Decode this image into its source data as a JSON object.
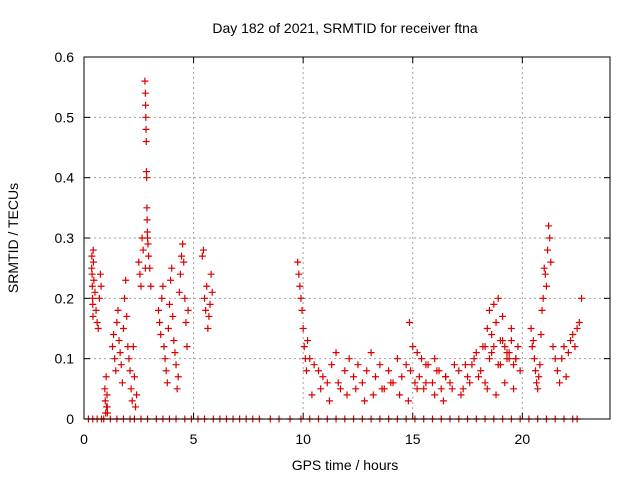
{
  "chart_data": {
    "type": "scatter",
    "title": "Day 182 of 2021, SRMTID for receiver ftna",
    "xlabel": "GPS time / hours",
    "ylabel": "SRMTID / TECUs",
    "xlim": [
      0,
      24
    ],
    "ylim": [
      0,
      0.6
    ],
    "xticks": [
      0,
      5,
      10,
      15,
      20
    ],
    "xtick_labels": [
      "0",
      "5",
      "10",
      "15",
      "20"
    ],
    "yticks": [
      0,
      0.1,
      0.2,
      0.3,
      0.4,
      0.5,
      0.6
    ],
    "ytick_labels": [
      "0",
      "0.1",
      "0.2",
      "0.3",
      "0.4",
      "0.5",
      "0.6"
    ],
    "grid": true,
    "marker": "+",
    "series_color": "#dd0000",
    "series": [
      {
        "name": "SRMTID",
        "x": [
          0.2,
          0.4,
          0.6,
          0.8,
          0.9,
          1.2,
          1.5,
          1.8,
          2.1,
          2.3,
          2.6,
          2.9,
          3.3,
          3.6,
          3.9,
          4.2,
          4.6,
          4.9,
          5.2,
          5.5,
          5.9,
          6.2,
          6.5,
          6.8,
          7.1,
          7.4,
          7.7,
          8.0,
          8.5,
          8.9,
          9.4,
          9.9,
          10.3,
          10.7,
          11.1,
          11.5,
          11.9,
          12.3,
          12.7,
          13.1,
          13.5,
          13.9,
          14.3,
          14.7,
          15.1,
          15.5,
          15.9,
          16.3,
          16.7,
          17.1,
          17.5,
          17.9,
          18.3,
          18.7,
          19.1,
          19.5,
          19.9,
          20.3,
          20.7,
          21.1,
          21.5,
          21.9,
          22.3,
          22.5,
          0.35,
          0.36,
          0.37,
          0.38,
          0.39,
          0.4,
          0.41,
          0.42,
          0.43,
          0.45,
          0.5,
          0.55,
          0.6,
          0.65,
          0.7,
          0.75,
          0.78,
          0.95,
          0.97,
          0.99,
          1.01,
          1.03,
          1.05,
          1.06,
          1.07,
          1.3,
          1.35,
          1.4,
          1.45,
          1.5,
          1.55,
          1.6,
          1.65,
          1.7,
          1.75,
          1.8,
          1.85,
          1.9,
          1.95,
          2.0,
          2.05,
          2.1,
          2.15,
          2.2,
          2.25,
          2.3,
          2.35,
          2.4,
          2.5,
          2.55,
          2.6,
          2.65,
          2.7,
          2.8,
          2.78,
          2.8,
          2.81,
          2.82,
          2.83,
          2.84,
          2.85,
          2.86,
          2.87,
          2.88,
          2.89,
          2.9,
          2.92,
          2.95,
          3.0,
          3.05,
          3.4,
          3.45,
          3.5,
          3.55,
          3.6,
          3.65,
          3.7,
          3.75,
          3.8,
          3.85,
          3.9,
          3.95,
          4.0,
          4.05,
          4.1,
          4.15,
          4.2,
          4.25,
          4.3,
          4.35,
          4.4,
          4.45,
          4.5,
          4.55,
          4.6,
          4.65,
          4.7,
          4.75,
          5.4,
          5.45,
          5.5,
          5.55,
          5.6,
          5.65,
          5.7,
          5.75,
          5.8,
          5.85,
          9.75,
          9.8,
          9.85,
          9.9,
          9.95,
          10.0,
          10.05,
          10.1,
          10.15,
          10.2,
          10.3,
          10.5,
          10.7,
          10.9,
          11.1,
          11.3,
          11.5,
          11.7,
          11.9,
          12.1,
          12.3,
          12.5,
          12.7,
          12.9,
          13.1,
          13.3,
          13.5,
          13.7,
          13.9,
          14.1,
          14.3,
          14.5,
          14.7,
          14.9,
          15.1,
          15.3,
          15.5,
          15.7,
          15.9,
          16.1,
          16.3,
          16.5,
          16.7,
          16.9,
          17.1,
          17.3,
          17.5,
          17.7,
          17.9,
          18.1,
          18.3,
          18.5,
          18.7,
          18.9,
          19.1,
          19.3,
          19.5,
          19.7,
          19.9,
          10.4,
          10.8,
          11.2,
          11.6,
          12.0,
          12.4,
          12.8,
          13.2,
          13.6,
          14.0,
          14.4,
          14.8,
          15.2,
          15.6,
          16.0,
          16.4,
          16.8,
          17.2,
          17.6,
          18.0,
          18.4,
          18.8,
          19.2,
          19.6,
          14.85,
          15.0,
          15.2,
          15.4,
          15.6,
          16.0,
          16.2,
          16.5,
          17.4,
          17.8,
          18.2,
          18.6,
          19.0,
          19.4,
          18.3,
          18.4,
          18.5,
          18.6,
          18.7,
          18.8,
          18.9,
          19.0,
          19.1,
          19.2,
          19.3,
          19.4,
          19.5,
          19.6,
          19.7,
          19.8,
          20.4,
          20.45,
          20.5,
          20.55,
          20.6,
          20.65,
          20.7,
          20.75,
          20.8,
          20.85,
          20.9,
          20.95,
          21.0,
          21.05,
          21.1,
          21.15,
          21.2,
          21.25,
          21.3,
          21.4,
          21.5,
          21.6,
          21.7,
          21.8,
          21.9,
          22.0,
          22.1,
          22.2,
          22.3,
          22.4,
          22.5,
          22.6,
          22.7
        ],
        "y": [
          0,
          0,
          0,
          0,
          0,
          0,
          0,
          0,
          0,
          0,
          0,
          0,
          0,
          0,
          0,
          0,
          0,
          0,
          0,
          0,
          0,
          0,
          0,
          0,
          0,
          0,
          0,
          0,
          0,
          0,
          0,
          0,
          0,
          0,
          0,
          0,
          0,
          0,
          0,
          0,
          0,
          0,
          0,
          0,
          0,
          0,
          0,
          0,
          0,
          0,
          0,
          0,
          0,
          0,
          0,
          0,
          0,
          0,
          0,
          0,
          0,
          0,
          0,
          0,
          0.25,
          0.27,
          0.24,
          0.22,
          0.2,
          0.19,
          0.17,
          0.28,
          0.26,
          0.23,
          0.21,
          0.18,
          0.16,
          0.15,
          0.2,
          0.24,
          0.22,
          0.05,
          0.03,
          0.01,
          0.07,
          0.02,
          0.04,
          0.02,
          0.01,
          0.12,
          0.14,
          0.1,
          0.08,
          0.16,
          0.18,
          0.13,
          0.11,
          0.09,
          0.06,
          0.15,
          0.2,
          0.23,
          0.17,
          0.12,
          0.1,
          0.08,
          0.05,
          0.03,
          0.12,
          0.07,
          0.02,
          0.04,
          0.26,
          0.24,
          0.22,
          0.3,
          0.28,
          0.25,
          0.56,
          0.54,
          0.52,
          0.5,
          0.48,
          0.46,
          0.41,
          0.4,
          0.35,
          0.33,
          0.31,
          0.3,
          0.29,
          0.27,
          0.25,
          0.22,
          0.18,
          0.16,
          0.14,
          0.2,
          0.22,
          0.12,
          0.1,
          0.08,
          0.06,
          0.15,
          0.19,
          0.23,
          0.25,
          0.17,
          0.13,
          0.11,
          0.09,
          0.05,
          0.07,
          0.21,
          0.24,
          0.27,
          0.29,
          0.26,
          0.2,
          0.16,
          0.12,
          0.18,
          0.27,
          0.28,
          0.2,
          0.18,
          0.22,
          0.15,
          0.17,
          0.19,
          0.24,
          0.21,
          0.26,
          0.24,
          0.22,
          0.2,
          0.18,
          0.15,
          0.12,
          0.1,
          0.08,
          0.13,
          0.1,
          0.09,
          0.08,
          0.07,
          0.06,
          0.09,
          0.11,
          0.05,
          0.08,
          0.1,
          0.07,
          0.09,
          0.06,
          0.08,
          0.11,
          0.07,
          0.09,
          0.05,
          0.08,
          0.06,
          0.1,
          0.07,
          0.09,
          0.08,
          0.06,
          0.07,
          0.05,
          0.09,
          0.06,
          0.08,
          0.05,
          0.07,
          0.06,
          0.09,
          0.08,
          0.05,
          0.07,
          0.09,
          0.11,
          0.08,
          0.06,
          0.1,
          0.12,
          0.09,
          0.13,
          0.11,
          0.15,
          0.1,
          0.08,
          0.04,
          0.05,
          0.03,
          0.06,
          0.04,
          0.05,
          0.03,
          0.04,
          0.05,
          0.06,
          0.04,
          0.03,
          0.05,
          0.06,
          0.04,
          0.03,
          0.05,
          0.04,
          0.06,
          0.07,
          0.05,
          0.04,
          0.06,
          0.05,
          0.16,
          0.12,
          0.11,
          0.1,
          0.09,
          0.1,
          0.08,
          0.07,
          0.09,
          0.1,
          0.12,
          0.11,
          0.09,
          0.1,
          0.12,
          0.15,
          0.18,
          0.14,
          0.19,
          0.16,
          0.2,
          0.13,
          0.17,
          0.12,
          0.1,
          0.11,
          0.13,
          0.09,
          0.1,
          0.12,
          0.15,
          0.12,
          0.13,
          0.1,
          0.08,
          0.06,
          0.05,
          0.07,
          0.09,
          0.14,
          0.18,
          0.2,
          0.25,
          0.24,
          0.22,
          0.28,
          0.32,
          0.3,
          0.26,
          0.12,
          0.1,
          0.08,
          0.06,
          0.1,
          0.12,
          0.07,
          0.11,
          0.13,
          0.14,
          0.12,
          0.15,
          0.16,
          0.2
        ]
      }
    ]
  }
}
